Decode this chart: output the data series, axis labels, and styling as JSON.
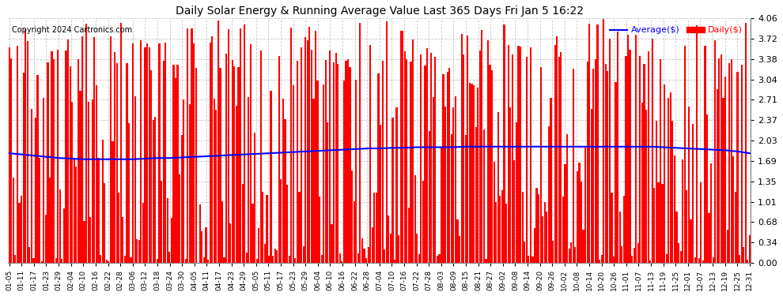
{
  "title": "Daily Solar Energy & Running Average Value Last 365 Days Fri Jan 5 16:22",
  "copyright": "Copyright 2024 Cartronics.com",
  "legend_average": "Average($)",
  "legend_daily": "Daily($)",
  "bar_color": "#ff0000",
  "average_line_color": "#0000ff",
  "background_color": "#ffffff",
  "grid_color": "#bbbbbb",
  "ylim": [
    0.0,
    4.06
  ],
  "yticks": [
    0.0,
    0.34,
    0.68,
    1.01,
    1.35,
    1.69,
    2.03,
    2.37,
    2.71,
    3.04,
    3.38,
    3.72,
    4.06
  ],
  "xtick_labels": [
    "01-05",
    "01-11",
    "01-17",
    "01-23",
    "01-29",
    "02-04",
    "02-10",
    "02-16",
    "02-22",
    "02-28",
    "03-06",
    "03-12",
    "03-18",
    "03-24",
    "03-30",
    "04-05",
    "04-11",
    "04-17",
    "04-23",
    "04-29",
    "05-05",
    "05-11",
    "05-17",
    "05-23",
    "05-29",
    "06-04",
    "06-10",
    "06-16",
    "06-22",
    "06-28",
    "07-04",
    "07-10",
    "07-16",
    "07-22",
    "07-28",
    "08-03",
    "08-09",
    "08-15",
    "08-21",
    "08-27",
    "09-02",
    "09-08",
    "09-14",
    "09-20",
    "09-26",
    "10-02",
    "10-08",
    "10-14",
    "10-20",
    "10-26",
    "11-01",
    "11-07",
    "11-13",
    "11-19",
    "11-25",
    "12-01",
    "12-07",
    "12-13",
    "12-19",
    "12-25",
    "12-31"
  ],
  "n_days": 366,
  "avg_line_values": [
    1.82,
    1.8,
    1.78,
    1.76,
    1.74,
    1.73,
    1.72,
    1.72,
    1.72,
    1.72,
    1.72,
    1.73,
    1.74,
    1.74,
    1.75,
    1.76,
    1.77,
    1.78,
    1.79,
    1.8,
    1.81,
    1.82,
    1.83,
    1.84,
    1.85,
    1.86,
    1.87,
    1.88,
    1.89,
    1.9,
    1.9,
    1.91,
    1.91,
    1.92,
    1.92,
    1.92,
    1.92,
    1.93,
    1.93,
    1.93,
    1.93,
    1.93,
    1.93,
    1.93,
    1.93,
    1.93,
    1.93,
    1.93,
    1.93,
    1.93,
    1.93,
    1.93,
    1.93,
    1.92,
    1.91,
    1.9,
    1.89,
    1.88,
    1.87,
    1.85,
    1.82
  ]
}
